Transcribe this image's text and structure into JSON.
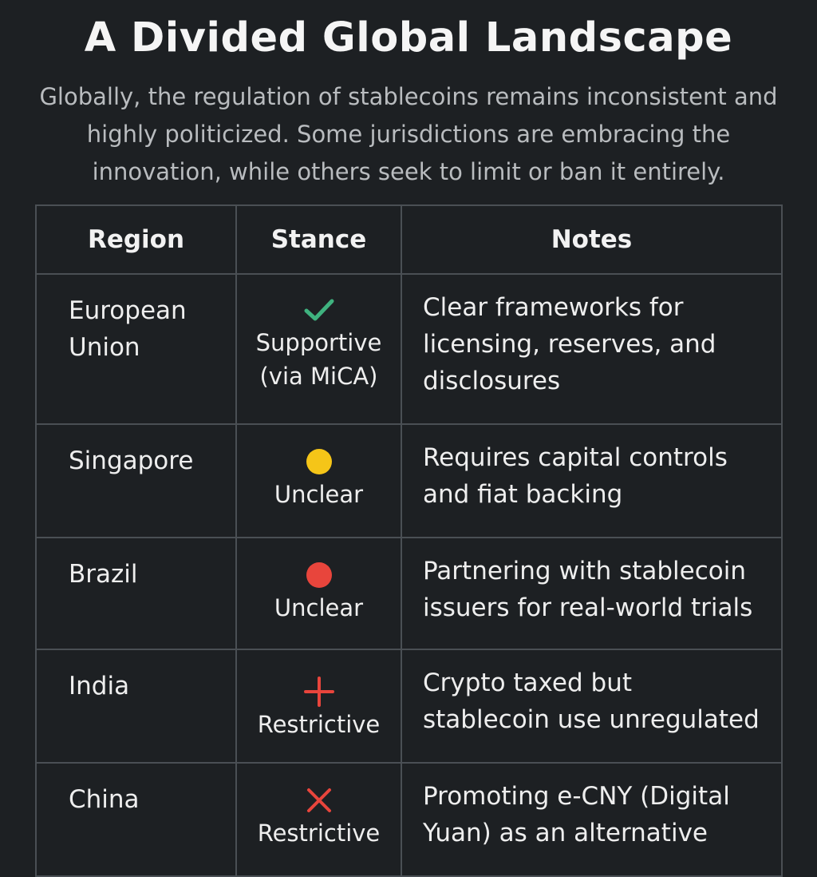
{
  "title": "A Divided Global Landscape",
  "subtitle": "Globally, the regulation of stablecoins remains inconsistent and highly politicized. Some jurisdictions are embracing the innovation, while others seek to limit or ban it entirely.",
  "table": {
    "headers": [
      "Region",
      "Stance",
      "Notes"
    ],
    "rows": [
      {
        "region": "European Union",
        "stance_icon": "check-icon",
        "stance_color": "#3fb27f",
        "stance": "Supportive (via MiCA)",
        "notes": "Clear frameworks for licensing, reserves, and disclosures"
      },
      {
        "region": "Singapore",
        "stance_icon": "yellow-circle-icon",
        "stance_color": "#f5c518",
        "stance": "Unclear",
        "notes": "Requires capital controls and fiat backing"
      },
      {
        "region": "Brazil",
        "stance_icon": "red-circle-icon",
        "stance_color": "#e8453c",
        "stance": "Unclear",
        "notes": "Partnering with stablecoin issuers for real-world trials"
      },
      {
        "region": "India",
        "stance_icon": "plus-icon",
        "stance_color": "#e8453c",
        "stance": "Restrictive",
        "notes": "Crypto taxed but stablecoin use unregulated"
      },
      {
        "region": "China",
        "stance_icon": "x-icon",
        "stance_color": "#e8453c",
        "stance": "Restrictive",
        "notes": "Promoting e-CNY (Digital Yuan) as an alternative"
      }
    ]
  }
}
